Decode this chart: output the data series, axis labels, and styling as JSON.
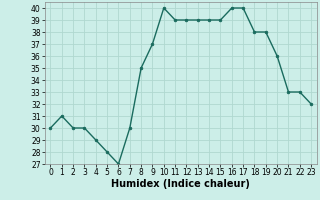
{
  "x": [
    0,
    1,
    2,
    3,
    4,
    5,
    6,
    7,
    8,
    9,
    10,
    11,
    12,
    13,
    14,
    15,
    16,
    17,
    18,
    19,
    20,
    21,
    22,
    23
  ],
  "y": [
    30,
    31,
    30,
    30,
    29,
    28,
    27,
    30,
    35,
    37,
    40,
    39,
    39,
    39,
    39,
    39,
    40,
    40,
    38,
    38,
    36,
    33,
    33,
    32
  ],
  "line_color": "#1a6b5e",
  "marker": "o",
  "marker_size": 2.0,
  "line_width": 1.0,
  "bg_color": "#cceee8",
  "grid_color": "#b0d8d0",
  "xlabel": "Humidex (Indice chaleur)",
  "xlim": [
    -0.5,
    23.5
  ],
  "ylim": [
    27,
    40.5
  ],
  "yticks": [
    27,
    28,
    29,
    30,
    31,
    32,
    33,
    34,
    35,
    36,
    37,
    38,
    39,
    40
  ],
  "xticks": [
    0,
    1,
    2,
    3,
    4,
    5,
    6,
    7,
    8,
    9,
    10,
    11,
    12,
    13,
    14,
    15,
    16,
    17,
    18,
    19,
    20,
    21,
    22,
    23
  ],
  "tick_fontsize": 5.5,
  "label_fontsize": 7
}
